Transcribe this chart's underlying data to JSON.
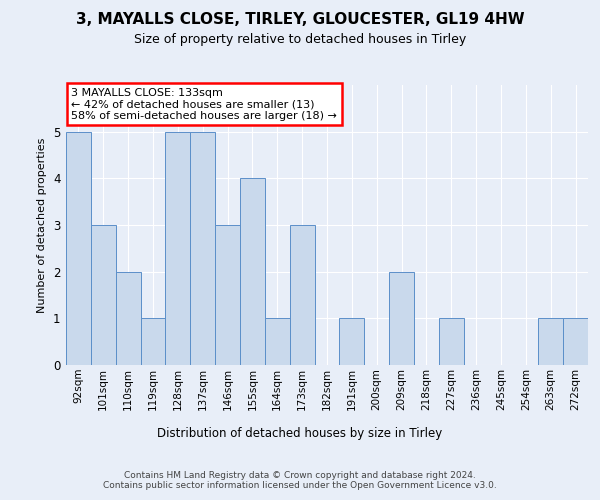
{
  "title1": "3, MAYALLS CLOSE, TIRLEY, GLOUCESTER, GL19 4HW",
  "title2": "Size of property relative to detached houses in Tirley",
  "xlabel": "Distribution of detached houses by size in Tirley",
  "ylabel": "Number of detached properties",
  "categories": [
    "92sqm",
    "101sqm",
    "110sqm",
    "119sqm",
    "128sqm",
    "137sqm",
    "146sqm",
    "155sqm",
    "164sqm",
    "173sqm",
    "182sqm",
    "191sqm",
    "200sqm",
    "209sqm",
    "218sqm",
    "227sqm",
    "236sqm",
    "245sqm",
    "254sqm",
    "263sqm",
    "272sqm"
  ],
  "values": [
    5,
    3,
    2,
    1,
    5,
    5,
    3,
    4,
    1,
    3,
    0,
    1,
    0,
    2,
    0,
    1,
    0,
    0,
    0,
    1,
    1
  ],
  "bar_color": "#c9d9ec",
  "bar_edge_color": "#5b8fc9",
  "annotation_text": "3 MAYALLS CLOSE: 133sqm\n← 42% of detached houses are smaller (13)\n58% of semi-detached houses are larger (18) →",
  "annotation_box_color": "white",
  "annotation_box_edge_color": "red",
  "ylim": [
    0,
    6
  ],
  "yticks": [
    0,
    1,
    2,
    3,
    4,
    5,
    6
  ],
  "footer_text": "Contains HM Land Registry data © Crown copyright and database right 2024.\nContains public sector information licensed under the Open Government Licence v3.0.",
  "background_color": "#e8eef8",
  "plot_bg_color": "#e8eef8",
  "grid_color": "#ffffff",
  "title1_fontsize": 11,
  "title2_fontsize": 9,
  "ylabel_fontsize": 8,
  "xlabel_fontsize": 8.5,
  "tick_fontsize": 7.5,
  "footer_fontsize": 6.5
}
